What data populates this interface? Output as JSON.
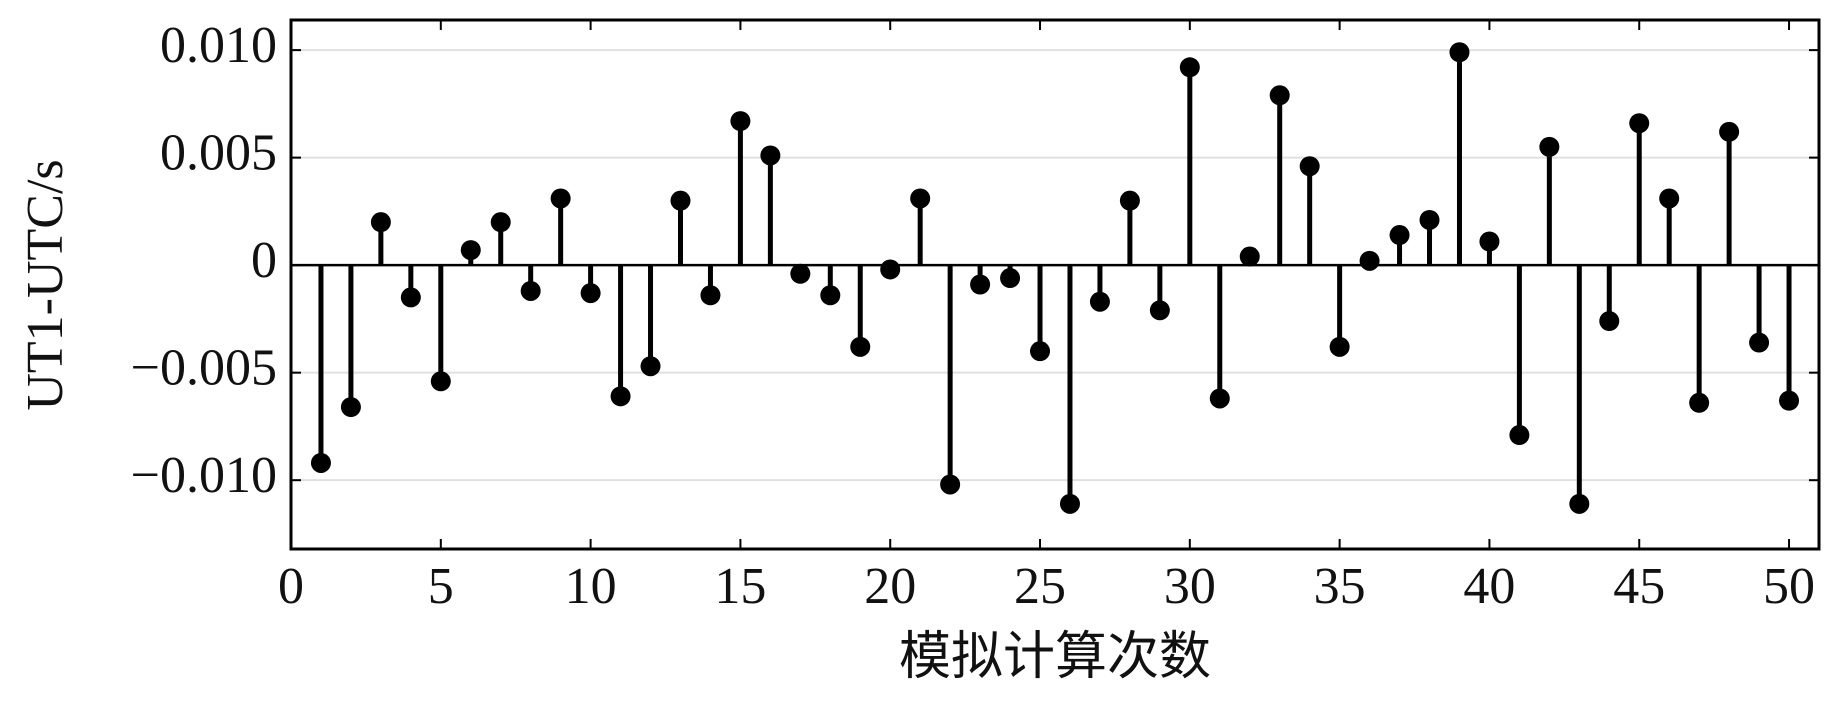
{
  "chart_data": {
    "type": "stem",
    "x_label": "模拟计算次数",
    "y_label": "UT1-UTC/s",
    "color": "#000000",
    "grid": true,
    "x": [
      1,
      2,
      3,
      4,
      5,
      6,
      7,
      8,
      9,
      10,
      11,
      12,
      13,
      14,
      15,
      16,
      17,
      18,
      19,
      20,
      21,
      22,
      23,
      24,
      25,
      26,
      27,
      28,
      29,
      30,
      31,
      32,
      33,
      34,
      35,
      36,
      37,
      38,
      39,
      40,
      41,
      42,
      43,
      44,
      45,
      46,
      47,
      48,
      49,
      50
    ],
    "values": [
      -0.0092,
      -0.0066,
      0.002,
      -0.0015,
      -0.0054,
      0.0007,
      0.002,
      -0.0012,
      0.0031,
      -0.0013,
      -0.0061,
      -0.0047,
      0.003,
      -0.0014,
      0.0067,
      0.0051,
      -0.0004,
      -0.0014,
      -0.0038,
      -0.0002,
      0.0031,
      -0.0102,
      -0.0009,
      -0.0006,
      -0.004,
      -0.0111,
      -0.0017,
      0.003,
      -0.0021,
      0.0092,
      -0.0062,
      0.0004,
      0.0079,
      0.0046,
      -0.0038,
      0.0002,
      0.0014,
      0.0021,
      0.0099,
      0.0011,
      -0.0079,
      0.0055,
      -0.0111,
      -0.0026,
      0.0066,
      0.0031,
      -0.0064,
      0.0062,
      -0.0036,
      -0.0063
    ],
    "xlim": [
      0,
      51
    ],
    "xticks": [
      0,
      5,
      10,
      15,
      20,
      25,
      30,
      35,
      40,
      45,
      50
    ],
    "ylim": [
      -0.0132,
      0.0114
    ],
    "yticks": [
      {
        "value": -0.01,
        "label": "−0.010"
      },
      {
        "value": -0.005,
        "label": "−0.005"
      },
      0,
      0.005,
      {
        "value": 0.01,
        "label": "0.010"
      }
    ]
  }
}
